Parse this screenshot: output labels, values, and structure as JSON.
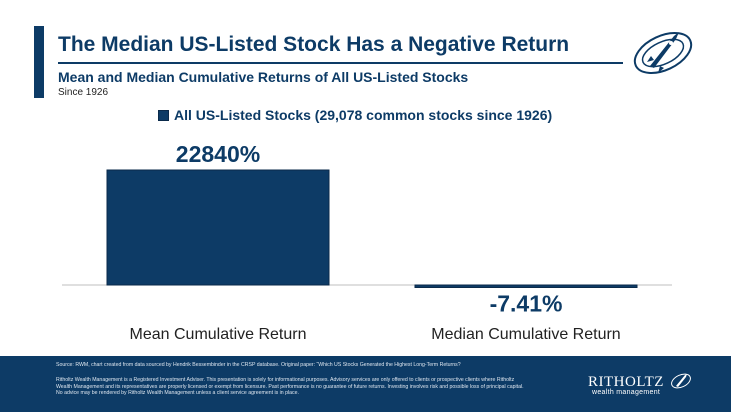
{
  "header": {
    "title": "The Median US-Listed Stock Has a Negative Return",
    "subtitle": "Mean and Median Cumulative Returns of All US-Listed Stocks",
    "since": "Since 1926"
  },
  "colors": {
    "brand": "#0d3b66",
    "footer_bg": "#0d3b66"
  },
  "chart_data": {
    "type": "bar",
    "categories": [
      "Mean Cumulative Return",
      "Median Cumulative Return"
    ],
    "series": [
      {
        "name": "All US-Listed Stocks (29,078 common stocks since 1926)",
        "values": [
          22840,
          -7.41
        ]
      }
    ],
    "data_labels": [
      "22840%",
      "-7.41%"
    ],
    "legend": "top-left",
    "grid": false
  },
  "footer": {
    "source": "Source: RWM, chart created from data sourced by Hendrik Bessembinder in the CRSP database. Original paper: “Which US Stocks Generated the Highest Long-Term Returns?",
    "disclaimer": "Ritholtz Wealth Management is a Registered Investment Adviser. This presentation is solely for informational purposes. Advisory services are only offered to clients or prospective clients where Ritholtz Wealth Management and its representatives are properly licensed or exempt from licensure. Past performance is no guarantee of future returns. Investing involves risk and possible loss of principal capital. No advice may be rendered by Ritholtz Wealth Management unless a client service agreement is in place.",
    "logo_name": "RITHOLTZ",
    "logo_sub": "wealth management"
  }
}
